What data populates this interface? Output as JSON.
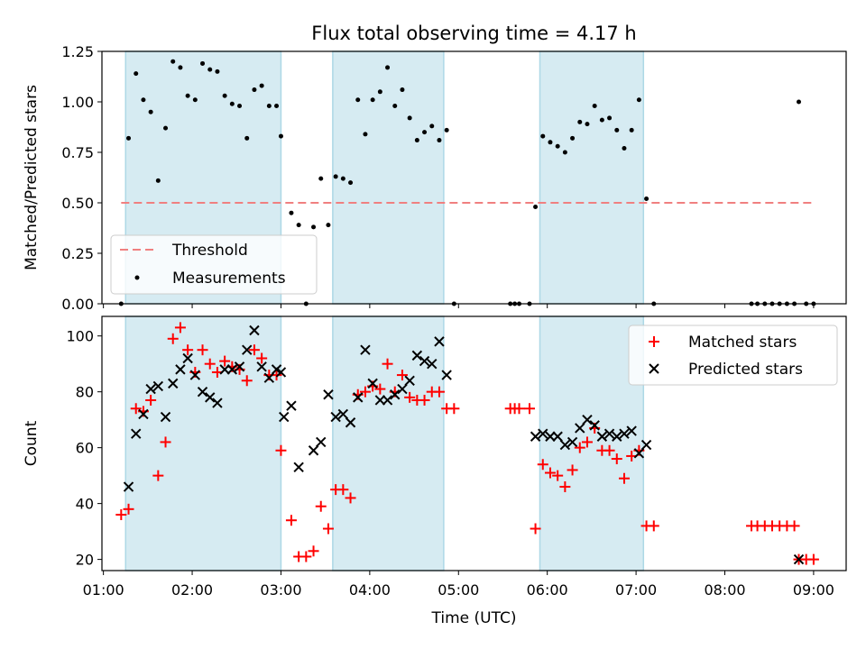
{
  "chart_data": [
    {
      "type": "scatter",
      "title": "Flux total observing time = 4.17 h",
      "xlabel": "",
      "ylabel": "Matched/Predicted stars",
      "ylim": [
        0,
        1.25
      ],
      "yticks": [
        "0.00",
        "0.25",
        "0.50",
        "0.75",
        "1.00",
        "1.25"
      ],
      "xlim": [
        "00:59",
        "09:22"
      ],
      "xticks": [
        "01:00",
        "02:00",
        "03:00",
        "04:00",
        "05:00",
        "06:00",
        "07:00",
        "08:00",
        "09:00"
      ],
      "grid": false,
      "legend_position": "lower left",
      "observing_windows": [
        [
          "01:15",
          "03:00"
        ],
        [
          "03:35",
          "04:50"
        ],
        [
          "05:55",
          "07:05"
        ]
      ],
      "threshold": {
        "name": "Threshold",
        "y": 0.5,
        "x_range": [
          "01:12",
          "09:00"
        ],
        "color": "#f08080"
      },
      "series": [
        {
          "name": "Measurements",
          "color": "#000000",
          "marker": "dot",
          "points": [
            [
              "01:12",
              0.0
            ],
            [
              "01:17",
              0.82
            ],
            [
              "01:22",
              1.14
            ],
            [
              "01:27",
              1.01
            ],
            [
              "01:32",
              0.95
            ],
            [
              "01:37",
              0.61
            ],
            [
              "01:42",
              0.87
            ],
            [
              "01:47",
              1.2
            ],
            [
              "01:52",
              1.17
            ],
            [
              "01:57",
              1.03
            ],
            [
              "02:02",
              1.01
            ],
            [
              "02:07",
              1.19
            ],
            [
              "02:12",
              1.16
            ],
            [
              "02:17",
              1.15
            ],
            [
              "02:22",
              1.03
            ],
            [
              "02:27",
              0.99
            ],
            [
              "02:32",
              0.98
            ],
            [
              "02:37",
              0.82
            ],
            [
              "02:42",
              1.06
            ],
            [
              "02:47",
              1.08
            ],
            [
              "02:52",
              0.98
            ],
            [
              "02:57",
              0.98
            ],
            [
              "03:00",
              0.83
            ],
            [
              "03:07",
              0.45
            ],
            [
              "03:12",
              0.39
            ],
            [
              "03:17",
              0.0
            ],
            [
              "03:22",
              0.38
            ],
            [
              "03:27",
              0.62
            ],
            [
              "03:32",
              0.39
            ],
            [
              "03:37",
              0.63
            ],
            [
              "03:42",
              0.62
            ],
            [
              "03:47",
              0.6
            ],
            [
              "03:52",
              1.01
            ],
            [
              "03:57",
              0.84
            ],
            [
              "04:02",
              1.01
            ],
            [
              "04:07",
              1.05
            ],
            [
              "04:12",
              1.17
            ],
            [
              "04:17",
              0.98
            ],
            [
              "04:22",
              1.06
            ],
            [
              "04:27",
              0.92
            ],
            [
              "04:32",
              0.81
            ],
            [
              "04:37",
              0.85
            ],
            [
              "04:42",
              0.88
            ],
            [
              "04:47",
              0.81
            ],
            [
              "04:52",
              0.86
            ],
            [
              "04:57",
              0.0
            ],
            [
              "05:35",
              0.0
            ],
            [
              "05:38",
              0.0
            ],
            [
              "05:41",
              0.0
            ],
            [
              "05:48",
              0.0
            ],
            [
              "05:52",
              0.48
            ],
            [
              "05:57",
              0.83
            ],
            [
              "06:02",
              0.8
            ],
            [
              "06:07",
              0.78
            ],
            [
              "06:12",
              0.75
            ],
            [
              "06:17",
              0.82
            ],
            [
              "06:22",
              0.9
            ],
            [
              "06:27",
              0.89
            ],
            [
              "06:32",
              0.98
            ],
            [
              "06:37",
              0.91
            ],
            [
              "06:42",
              0.92
            ],
            [
              "06:47",
              0.86
            ],
            [
              "06:52",
              0.77
            ],
            [
              "06:57",
              0.86
            ],
            [
              "07:02",
              1.01
            ],
            [
              "07:07",
              0.52
            ],
            [
              "07:12",
              0.0
            ],
            [
              "08:18",
              0.0
            ],
            [
              "08:22",
              0.0
            ],
            [
              "08:27",
              0.0
            ],
            [
              "08:32",
              0.0
            ],
            [
              "08:37",
              0.0
            ],
            [
              "08:42",
              0.0
            ],
            [
              "08:47",
              0.0
            ],
            [
              "08:50",
              1.0
            ],
            [
              "08:55",
              0.0
            ],
            [
              "09:00",
              0.0
            ]
          ]
        }
      ]
    },
    {
      "type": "scatter",
      "title": "",
      "xlabel": "Time (UTC)",
      "ylabel": "Count",
      "ylim": [
        16,
        107
      ],
      "yticks": [
        "20",
        "40",
        "60",
        "80",
        "100"
      ],
      "xlim": [
        "00:59",
        "09:22"
      ],
      "xticks": [
        "01:00",
        "02:00",
        "03:00",
        "04:00",
        "05:00",
        "06:00",
        "07:00",
        "08:00",
        "09:00"
      ],
      "grid": false,
      "legend_position": "upper right",
      "observing_windows": [
        [
          "01:15",
          "03:00"
        ],
        [
          "03:35",
          "04:50"
        ],
        [
          "05:55",
          "07:05"
        ]
      ],
      "series": [
        {
          "name": "Matched stars",
          "color": "#ff0000",
          "marker": "plus",
          "points": [
            [
              "01:12",
              36
            ],
            [
              "01:17",
              38
            ],
            [
              "01:22",
              74
            ],
            [
              "01:27",
              73
            ],
            [
              "01:32",
              77
            ],
            [
              "01:37",
              50
            ],
            [
              "01:42",
              62
            ],
            [
              "01:47",
              99
            ],
            [
              "01:52",
              103
            ],
            [
              "01:57",
              95
            ],
            [
              "02:02",
              87
            ],
            [
              "02:07",
              95
            ],
            [
              "02:12",
              90
            ],
            [
              "02:17",
              87
            ],
            [
              "02:22",
              91
            ],
            [
              "02:27",
              89
            ],
            [
              "02:32",
              88
            ],
            [
              "02:37",
              84
            ],
            [
              "02:42",
              95
            ],
            [
              "02:47",
              92
            ],
            [
              "02:52",
              86
            ],
            [
              "02:57",
              86
            ],
            [
              "03:00",
              59
            ],
            [
              "03:07",
              34
            ],
            [
              "03:12",
              21
            ],
            [
              "03:17",
              21
            ],
            [
              "03:22",
              23
            ],
            [
              "03:27",
              39
            ],
            [
              "03:32",
              31
            ],
            [
              "03:37",
              45
            ],
            [
              "03:42",
              45
            ],
            [
              "03:47",
              42
            ],
            [
              "03:52",
              79
            ],
            [
              "03:57",
              80
            ],
            [
              "04:02",
              82
            ],
            [
              "04:07",
              81
            ],
            [
              "04:12",
              90
            ],
            [
              "04:17",
              80
            ],
            [
              "04:22",
              86
            ],
            [
              "04:27",
              78
            ],
            [
              "04:32",
              77
            ],
            [
              "04:37",
              77
            ],
            [
              "04:42",
              80
            ],
            [
              "04:47",
              80
            ],
            [
              "04:52",
              74
            ],
            [
              "04:57",
              74
            ],
            [
              "05:35",
              74
            ],
            [
              "05:38",
              74
            ],
            [
              "05:41",
              74
            ],
            [
              "05:48",
              74
            ],
            [
              "05:52",
              31
            ],
            [
              "05:57",
              54
            ],
            [
              "06:02",
              51
            ],
            [
              "06:07",
              50
            ],
            [
              "06:12",
              46
            ],
            [
              "06:17",
              52
            ],
            [
              "06:22",
              60
            ],
            [
              "06:27",
              62
            ],
            [
              "06:32",
              67
            ],
            [
              "06:37",
              59
            ],
            [
              "06:42",
              59
            ],
            [
              "06:47",
              56
            ],
            [
              "06:52",
              49
            ],
            [
              "06:57",
              57
            ],
            [
              "07:02",
              59
            ],
            [
              "07:07",
              32
            ],
            [
              "07:12",
              32
            ],
            [
              "08:18",
              32
            ],
            [
              "08:22",
              32
            ],
            [
              "08:27",
              32
            ],
            [
              "08:32",
              32
            ],
            [
              "08:37",
              32
            ],
            [
              "08:42",
              32
            ],
            [
              "08:47",
              32
            ],
            [
              "08:50",
              20
            ],
            [
              "08:55",
              20
            ],
            [
              "09:00",
              20
            ]
          ]
        },
        {
          "name": "Predicted stars",
          "color": "#000000",
          "marker": "x",
          "points": [
            [
              "01:17",
              46
            ],
            [
              "01:22",
              65
            ],
            [
              "01:27",
              72
            ],
            [
              "01:32",
              81
            ],
            [
              "01:37",
              82
            ],
            [
              "01:42",
              71
            ],
            [
              "01:47",
              83
            ],
            [
              "01:52",
              88
            ],
            [
              "01:57",
              92
            ],
            [
              "02:02",
              86
            ],
            [
              "02:07",
              80
            ],
            [
              "02:12",
              78
            ],
            [
              "02:17",
              76
            ],
            [
              "02:22",
              88
            ],
            [
              "02:27",
              88
            ],
            [
              "02:32",
              89
            ],
            [
              "02:37",
              95
            ],
            [
              "02:42",
              102
            ],
            [
              "02:47",
              89
            ],
            [
              "02:52",
              85
            ],
            [
              "02:57",
              88
            ],
            [
              "03:00",
              87
            ],
            [
              "03:02",
              71
            ],
            [
              "03:07",
              75
            ],
            [
              "03:12",
              53
            ],
            [
              "03:22",
              59
            ],
            [
              "03:27",
              62
            ],
            [
              "03:32",
              79
            ],
            [
              "03:37",
              71
            ],
            [
              "03:42",
              72
            ],
            [
              "03:47",
              69
            ],
            [
              "03:52",
              78
            ],
            [
              "03:57",
              95
            ],
            [
              "04:02",
              83
            ],
            [
              "04:07",
              77
            ],
            [
              "04:12",
              77
            ],
            [
              "04:17",
              79
            ],
            [
              "04:22",
              81
            ],
            [
              "04:27",
              84
            ],
            [
              "04:32",
              93
            ],
            [
              "04:37",
              91
            ],
            [
              "04:42",
              90
            ],
            [
              "04:47",
              98
            ],
            [
              "04:52",
              86
            ],
            [
              "05:52",
              64
            ],
            [
              "05:57",
              65
            ],
            [
              "06:02",
              64
            ],
            [
              "06:07",
              64
            ],
            [
              "06:12",
              61
            ],
            [
              "06:17",
              62
            ],
            [
              "06:22",
              67
            ],
            [
              "06:27",
              70
            ],
            [
              "06:32",
              68
            ],
            [
              "06:37",
              64
            ],
            [
              "06:42",
              65
            ],
            [
              "06:47",
              64
            ],
            [
              "06:52",
              65
            ],
            [
              "06:57",
              66
            ],
            [
              "07:02",
              58
            ],
            [
              "07:07",
              61
            ],
            [
              "08:50",
              20
            ]
          ]
        }
      ]
    }
  ]
}
